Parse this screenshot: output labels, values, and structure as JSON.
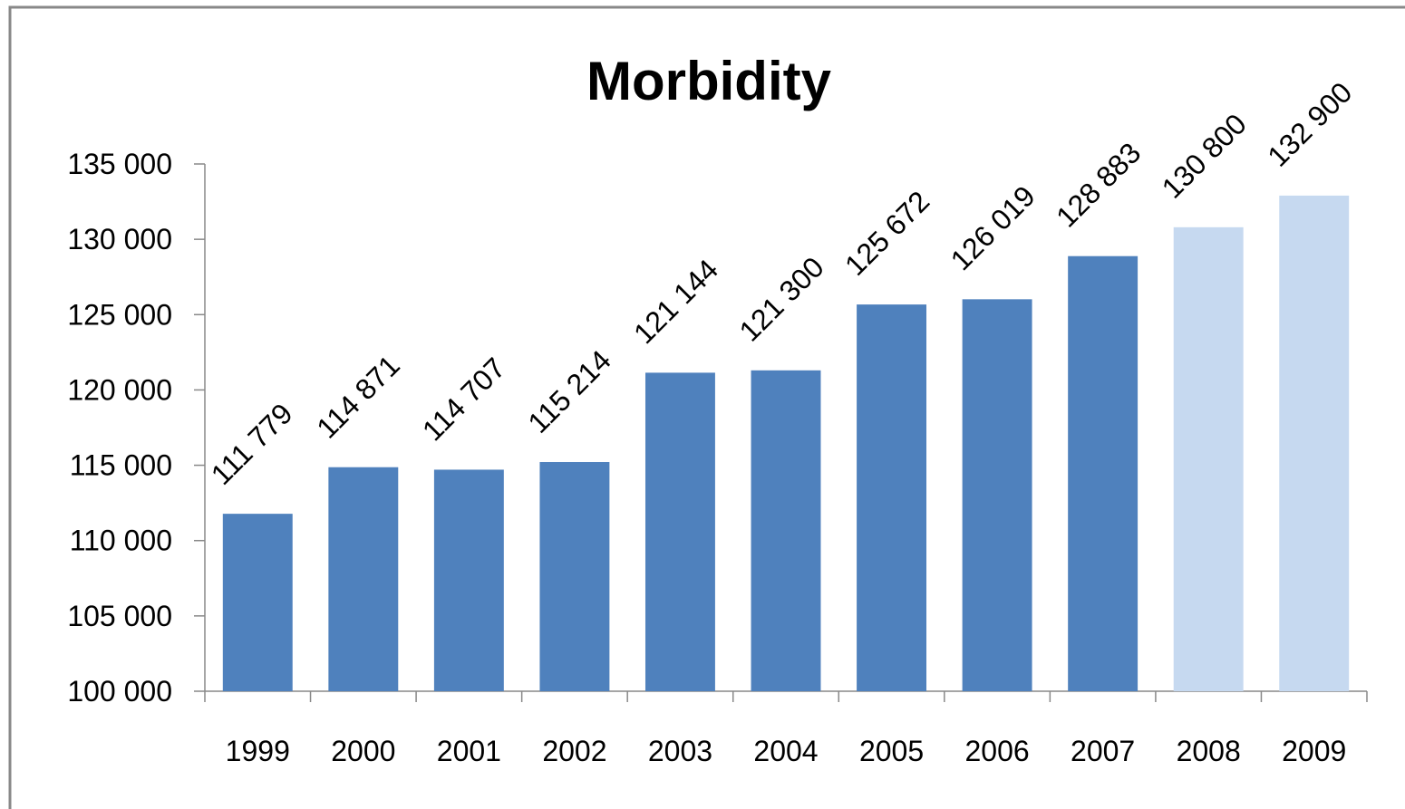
{
  "chart_data": {
    "type": "bar",
    "title": "Morbidity",
    "categories": [
      "1999",
      "2000",
      "2001",
      "2002",
      "2003",
      "2004",
      "2005",
      "2006",
      "2007",
      "2008",
      "2009"
    ],
    "values": [
      111779,
      114871,
      114707,
      115214,
      121144,
      121300,
      125672,
      126019,
      128883,
      130800,
      132900
    ],
    "value_labels": [
      "111 779",
      "114 871",
      "114 707",
      "115 214",
      "121 144",
      "121 300",
      "125 672",
      "126 019",
      "128 883",
      "130 800",
      "132 900"
    ],
    "colors": [
      "#4f81bd",
      "#4f81bd",
      "#4f81bd",
      "#4f81bd",
      "#4f81bd",
      "#4f81bd",
      "#4f81bd",
      "#4f81bd",
      "#4f81bd",
      "#c6d9f0",
      "#c6d9f0"
    ],
    "ylim": [
      100000,
      135000
    ],
    "yticks": [
      {
        "value": 100000,
        "label": "100 000"
      },
      {
        "value": 105000,
        "label": "105 000"
      },
      {
        "value": 110000,
        "label": "110 000"
      },
      {
        "value": 115000,
        "label": "115 000"
      },
      {
        "value": 120000,
        "label": "120 000"
      },
      {
        "value": 125000,
        "label": "125 000"
      },
      {
        "value": 130000,
        "label": "130 000"
      },
      {
        "value": 135000,
        "label": "135 000"
      }
    ],
    "grid": false
  }
}
